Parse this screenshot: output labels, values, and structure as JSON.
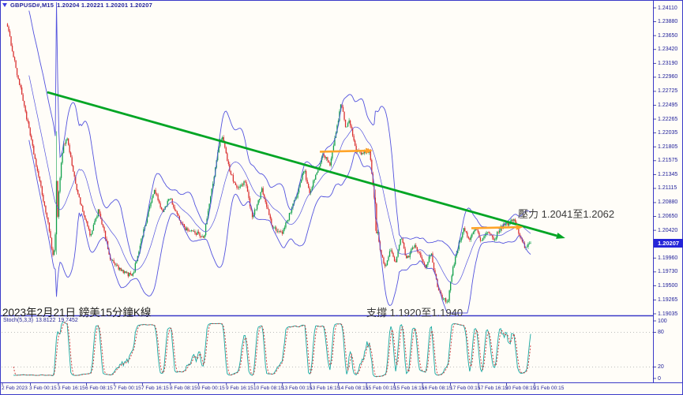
{
  "window": {
    "symbol": "GBPUSD#,M15",
    "ohlc_text": "1.20204 1.20221 1.20201 1.20207"
  },
  "annotations": {
    "date_label": "2023年2月21日 鎊美15分鐘K線",
    "resistance_label": "壓力 1.2041至1.2062",
    "support_label": "支撐 1.1920至1.1940"
  },
  "indicator": {
    "name": "Stoch(5,3,3)",
    "k_value": "13.8122",
    "d_value": "19.7452"
  },
  "price_axis": {
    "current": "1.20207",
    "labels": [
      "1.24110",
      "1.23880",
      "1.23650",
      "1.23420",
      "1.23190",
      "1.22960",
      "1.22725",
      "1.22495",
      "1.22265",
      "1.22035",
      "1.21805",
      "1.21575",
      "1.21345",
      "1.21115",
      "1.20880",
      "1.20650",
      "1.20420",
      "1.19960",
      "1.19730",
      "1.19500",
      "1.19265",
      "1.19035"
    ]
  },
  "stoch_axis": {
    "labels": [
      "100",
      "80",
      "20",
      "0"
    ],
    "values": [
      100,
      80,
      20,
      0
    ],
    "grid_levels": [
      80,
      20
    ]
  },
  "time_axis": {
    "labels": [
      "2 Feb 2023",
      "3 Feb 00:15",
      "3 Feb 16:15",
      "6 Feb 08:15",
      "7 Feb 00:15",
      "7 Feb 16:15",
      "8 Feb 08:15",
      "9 Feb 00:15",
      "9 Feb 16:15",
      "10 Feb 08:15",
      "13 Feb 00:15",
      "13 Feb 16:15",
      "14 Feb 08:15",
      "15 Feb 00:15",
      "15 Feb 16:15",
      "16 Feb 08:15",
      "17 Feb 00:15",
      "17 Feb 16:15",
      "20 Feb 08:15",
      "21 Feb 00:15"
    ]
  },
  "colors": {
    "bull": "#0fa04a",
    "bear": "#d93030",
    "bands": "#5353de",
    "trendline": "#00a524",
    "arrow": "#ffa428",
    "stoch_k": "#17a8a0",
    "stoch_d": "#cc3333",
    "frame": "#3a3ac8",
    "grid": "#a8a8a8",
    "price_tag_bg": "#2525d8",
    "axis_text": "#21219a"
  },
  "chart_data": {
    "type": "candlestick",
    "symbol": "GBPUSD#",
    "timeframe": "M15",
    "title": "GBPUSD#,M15 1.20204 1.20221 1.20201 1.20207",
    "y_axis": {
      "top": 1.2411,
      "bottom": 1.19035,
      "label_step": 0.0023
    },
    "current_ohlc": {
      "open": 1.20204,
      "high": 1.20221,
      "low": 1.20201,
      "close": 1.20207
    },
    "resistance_zone": [
      1.2041,
      1.2062
    ],
    "support_zone": [
      1.192,
      1.194
    ],
    "indicators": {
      "bollinger": {
        "period": 20,
        "deviation": 2
      },
      "stochastic": {
        "k": 5,
        "d": 3,
        "slowing": 3,
        "last_k": 13.8122,
        "last_d": 19.7452,
        "range": [
          0,
          100
        ],
        "grid": [
          20,
          80
        ]
      }
    },
    "drawings": {
      "trendline": {
        "t1": 0.078,
        "price1": 1.22711,
        "t2": 1.066,
        "price2": 1.20291
      },
      "arrows": [
        {
          "t1": 0.598,
          "t2": 0.699,
          "price": 1.21743
        },
        {
          "t1": 0.887,
          "t2": 0.986,
          "price": 1.20474
        }
      ]
    },
    "volatility_spikes": [
      {
        "t": 0.096,
        "wick_up": 0.016,
        "wick_dn": 0.005,
        "band_up": 0.026,
        "band_dn": 0.005
      },
      {
        "t": 0.703,
        "wick_up": 0.002,
        "wick_dn": 0.007,
        "band_up": 0.002,
        "band_dn": 0.004
      }
    ],
    "price_waypoints": [
      [
        0.0,
        1.23875
      ],
      [
        0.009,
        1.23521
      ],
      [
        0.021,
        1.22998
      ],
      [
        0.033,
        1.22541
      ],
      [
        0.045,
        1.22017
      ],
      [
        0.057,
        1.21494
      ],
      [
        0.068,
        1.21036
      ],
      [
        0.075,
        1.20736
      ],
      [
        0.084,
        1.20317
      ],
      [
        0.09,
        1.19925
      ],
      [
        0.099,
        1.20971
      ],
      [
        0.108,
        1.21821
      ],
      [
        0.116,
        1.21952
      ],
      [
        0.131,
        1.21233
      ],
      [
        0.146,
        1.2071
      ],
      [
        0.161,
        1.20317
      ],
      [
        0.176,
        1.20775
      ],
      [
        0.199,
        1.19925
      ],
      [
        0.221,
        1.19729
      ],
      [
        0.241,
        1.19663
      ],
      [
        0.259,
        1.20317
      ],
      [
        0.274,
        1.2084
      ],
      [
        0.283,
        1.21102
      ],
      [
        0.297,
        1.2071
      ],
      [
        0.312,
        1.20971
      ],
      [
        0.327,
        1.20644
      ],
      [
        0.342,
        1.20448
      ],
      [
        0.377,
        1.20317
      ],
      [
        0.407,
        1.21887
      ],
      [
        0.413,
        1.21991
      ],
      [
        0.425,
        1.21429
      ],
      [
        0.44,
        1.21102
      ],
      [
        0.455,
        1.21233
      ],
      [
        0.47,
        1.20644
      ],
      [
        0.488,
        1.21102
      ],
      [
        0.508,
        1.20448
      ],
      [
        0.527,
        1.20382
      ],
      [
        0.553,
        1.20971
      ],
      [
        0.568,
        1.21429
      ],
      [
        0.578,
        1.21036
      ],
      [
        0.605,
        1.2169
      ],
      [
        0.617,
        1.21494
      ],
      [
        0.639,
        1.22541
      ],
      [
        0.648,
        1.22083
      ],
      [
        0.654,
        1.22279
      ],
      [
        0.666,
        1.21756
      ],
      [
        0.681,
        1.2169
      ],
      [
        0.693,
        1.21756
      ],
      [
        0.703,
        1.2084
      ],
      [
        0.711,
        1.20186
      ],
      [
        0.723,
        1.19794
      ],
      [
        0.733,
        1.20121
      ],
      [
        0.741,
        1.19859
      ],
      [
        0.753,
        1.20317
      ],
      [
        0.763,
        1.19925
      ],
      [
        0.779,
        1.20186
      ],
      [
        0.791,
        1.1999
      ],
      [
        0.801,
        1.19794
      ],
      [
        0.81,
        1.20056
      ],
      [
        0.821,
        1.19532
      ],
      [
        0.831,
        1.1931
      ],
      [
        0.842,
        1.19232
      ],
      [
        0.852,
        1.19794
      ],
      [
        0.863,
        1.20186
      ],
      [
        0.873,
        1.20448
      ],
      [
        0.884,
        1.20252
      ],
      [
        0.894,
        1.20487
      ],
      [
        0.906,
        1.20213
      ],
      [
        0.919,
        1.20422
      ],
      [
        0.929,
        1.20252
      ],
      [
        0.944,
        1.20474
      ],
      [
        0.959,
        1.20539
      ],
      [
        0.97,
        1.20605
      ],
      [
        0.979,
        1.20317
      ],
      [
        0.99,
        1.20121
      ],
      [
        1.0,
        1.20207
      ]
    ]
  }
}
